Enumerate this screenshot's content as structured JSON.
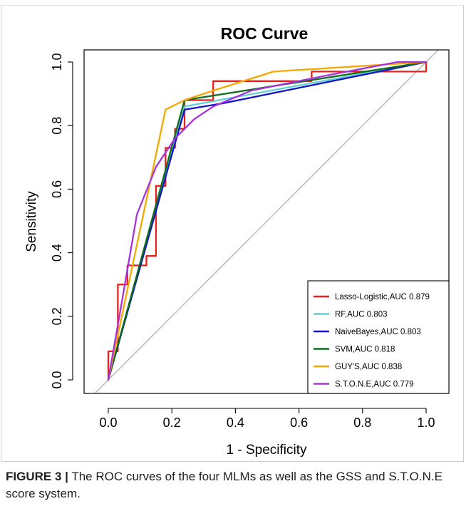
{
  "chart_data": {
    "type": "line",
    "title": "ROC Curve",
    "xlabel": "1 - Specificity",
    "ylabel": "Sensitivity",
    "xlim": [
      0,
      1
    ],
    "ylim": [
      0,
      1
    ],
    "xticks": [
      "0.0",
      "0.2",
      "0.4",
      "0.6",
      "0.8",
      "1.0"
    ],
    "yticks": [
      "0.0",
      "0.2",
      "0.4",
      "0.6",
      "0.8",
      "1.0"
    ],
    "grid": false,
    "legend_position": "bottom-right",
    "reference_line": {
      "color": "#b0b0b0",
      "points": [
        [
          0,
          0
        ],
        [
          1,
          1
        ]
      ]
    },
    "series": [
      {
        "name": "Lasso-Logistic,AUC 0.879",
        "color": "#e8201c",
        "points": [
          [
            0,
            0
          ],
          [
            0,
            0.09
          ],
          [
            0.03,
            0.09
          ],
          [
            0.03,
            0.3
          ],
          [
            0.06,
            0.3
          ],
          [
            0.06,
            0.36
          ],
          [
            0.12,
            0.36
          ],
          [
            0.12,
            0.39
          ],
          [
            0.15,
            0.39
          ],
          [
            0.15,
            0.61
          ],
          [
            0.18,
            0.61
          ],
          [
            0.18,
            0.73
          ],
          [
            0.21,
            0.73
          ],
          [
            0.21,
            0.79
          ],
          [
            0.24,
            0.79
          ],
          [
            0.24,
            0.88
          ],
          [
            0.33,
            0.88
          ],
          [
            0.33,
            0.94
          ],
          [
            0.64,
            0.94
          ],
          [
            0.64,
            0.97
          ],
          [
            1.0,
            0.97
          ],
          [
            1.0,
            1.0
          ]
        ]
      },
      {
        "name": "RF,AUC 0.803",
        "color": "#5fd0d9",
        "points": [
          [
            0,
            0
          ],
          [
            0.24,
            0.86
          ],
          [
            1.0,
            1.0
          ]
        ]
      },
      {
        "name": "NaiveBayes,AUC 0.803",
        "color": "#1414c8",
        "points": [
          [
            0,
            0
          ],
          [
            0.24,
            0.85
          ],
          [
            0.36,
            0.87
          ],
          [
            1.0,
            1.0
          ]
        ]
      },
      {
        "name": "SVM,AUC 0.818",
        "color": "#0e6e1c",
        "points": [
          [
            0,
            0
          ],
          [
            0.24,
            0.88
          ],
          [
            1.0,
            1.0
          ]
        ]
      },
      {
        "name": "GUY'S,AUC 0.838",
        "color": "#f5a800",
        "points": [
          [
            0,
            0
          ],
          [
            0.18,
            0.85
          ],
          [
            0.24,
            0.88
          ],
          [
            0.33,
            0.91
          ],
          [
            0.52,
            0.97
          ],
          [
            1.0,
            1.0
          ]
        ]
      },
      {
        "name": "S.T.O.N.E,AUC 0.779",
        "color": "#a732dc",
        "points": [
          [
            0,
            0
          ],
          [
            0.04,
            0.23
          ],
          [
            0.09,
            0.52
          ],
          [
            0.15,
            0.67
          ],
          [
            0.21,
            0.76
          ],
          [
            0.27,
            0.82
          ],
          [
            0.33,
            0.86
          ],
          [
            0.45,
            0.91
          ],
          [
            0.7,
            0.96
          ],
          [
            0.91,
            1.0
          ],
          [
            1.0,
            1.0
          ]
        ]
      }
    ]
  },
  "caption": {
    "label": "FIGURE 3",
    "separator": "|",
    "text": "The ROC curves of the four MLMs as well as the GSS and S.T.O.N.E score system."
  }
}
